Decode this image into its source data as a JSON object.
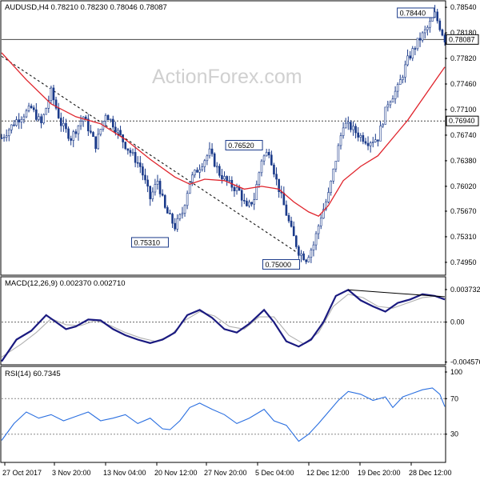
{
  "chart_data": [
    {
      "type": "candlestick",
      "title": "AUDUSD,H4  0.78210 0.78230 0.78046 0.78087",
      "watermark": "ActionForex.com",
      "ylim": [
        0.7478,
        0.7862
      ],
      "y_ticks": [
        "0.78540",
        "0.78180",
        "0.77820",
        "0.77460",
        "0.77100",
        "0.76740",
        "0.76380",
        "0.76020",
        "0.75670",
        "0.75310",
        "0.74950"
      ],
      "x_ticks": [
        "27 Oct 2017",
        "3 Nov 20:00",
        "13 Nov 04:00",
        "20 Nov 12:00",
        "27 Nov 20:00",
        "5 Dec 04:00",
        "12 Dec 12:00",
        "19 Dec 20:00",
        "28 Dec 12:00"
      ],
      "price_path": [
        [
          0,
          0.767
        ],
        [
          6,
          0.7695
        ],
        [
          12,
          0.7712
        ],
        [
          16,
          0.769
        ],
        [
          20,
          0.7735
        ],
        [
          24,
          0.769
        ],
        [
          28,
          0.767
        ],
        [
          33,
          0.77
        ],
        [
          38,
          0.766
        ],
        [
          42,
          0.7705
        ],
        [
          45,
          0.769
        ],
        [
          50,
          0.766
        ],
        [
          56,
          0.763
        ],
        [
          60,
          0.7585
        ],
        [
          63,
          0.761
        ],
        [
          66,
          0.757
        ],
        [
          70,
          0.7545
        ],
        [
          73,
          0.7565
        ],
        [
          76,
          0.761
        ],
        [
          80,
          0.763
        ],
        [
          84,
          0.765
        ],
        [
          88,
          0.762
        ],
        [
          92,
          0.7605
        ],
        [
          96,
          0.7595
        ],
        [
          99,
          0.757
        ],
        [
          102,
          0.7585
        ],
        [
          105,
          0.764
        ],
        [
          108,
          0.7652
        ],
        [
          111,
          0.761
        ],
        [
          114,
          0.7575
        ],
        [
          117,
          0.754
        ],
        [
          120,
          0.751
        ],
        [
          123,
          0.75
        ],
        [
          126,
          0.752
        ],
        [
          129,
          0.756
        ],
        [
          132,
          0.759
        ],
        [
          135,
          0.764
        ],
        [
          138,
          0.769
        ],
        [
          141,
          0.7685
        ],
        [
          144,
          0.7675
        ],
        [
          148,
          0.7665
        ],
        [
          152,
          0.767
        ],
        [
          156,
          0.772
        ],
        [
          160,
          0.774
        ],
        [
          164,
          0.778
        ],
        [
          168,
          0.7805
        ],
        [
          172,
          0.7825
        ],
        [
          175,
          0.7844
        ],
        [
          179,
          0.7809
        ]
      ],
      "ma_path": [
        [
          0,
          0.779
        ],
        [
          10,
          0.7752
        ],
        [
          20,
          0.7718
        ],
        [
          30,
          0.77
        ],
        [
          40,
          0.769
        ],
        [
          50,
          0.7668
        ],
        [
          60,
          0.764
        ],
        [
          70,
          0.7615
        ],
        [
          76,
          0.7605
        ],
        [
          82,
          0.7612
        ],
        [
          90,
          0.761
        ],
        [
          98,
          0.7598
        ],
        [
          105,
          0.7602
        ],
        [
          112,
          0.7598
        ],
        [
          118,
          0.758
        ],
        [
          124,
          0.7566
        ],
        [
          128,
          0.756
        ],
        [
          132,
          0.7575
        ],
        [
          138,
          0.761
        ],
        [
          145,
          0.763
        ],
        [
          152,
          0.7645
        ],
        [
          158,
          0.767
        ],
        [
          164,
          0.7695
        ],
        [
          170,
          0.7725
        ],
        [
          176,
          0.7755
        ],
        [
          179,
          0.777
        ]
      ],
      "trendline": [
        [
          0,
          0.7785
        ],
        [
          121,
          0.7505
        ]
      ],
      "horizontal_lines": [
        {
          "label": "0.78087",
          "value": 0.78087
        },
        {
          "label": "0.76940",
          "value": 0.7694
        }
      ],
      "annotations": [
        {
          "label": "0.78440",
          "x": 175,
          "y": 0.7844,
          "pos": "left-above"
        },
        {
          "label": "0.76520",
          "x": 106,
          "y": 0.7652,
          "pos": "left-above"
        },
        {
          "label": "0.75310",
          "x": 68,
          "y": 0.7531,
          "pos": "left-below"
        },
        {
          "label": "0.75000",
          "x": 121,
          "y": 0.75,
          "pos": "left-below"
        }
      ],
      "colors": {
        "candle": "#1a3a8a",
        "ma": "#e0242c",
        "trend": "#000000",
        "hline": "#444444"
      }
    },
    {
      "type": "line",
      "title": "MACD(12,26,9) 0.002370 0.002710",
      "ylim": [
        -0.0048,
        0.004
      ],
      "y_ticks": [
        "0.003732",
        "0.00",
        "-0.004576"
      ],
      "macd_path": [
        [
          0,
          -0.0045
        ],
        [
          6,
          -0.002
        ],
        [
          12,
          -0.001
        ],
        [
          18,
          0.0008
        ],
        [
          22,
          0.0
        ],
        [
          26,
          -0.0008
        ],
        [
          30,
          -0.0005
        ],
        [
          35,
          0.0003
        ],
        [
          40,
          0.0002
        ],
        [
          45,
          -0.0008
        ],
        [
          50,
          -0.0015
        ],
        [
          55,
          -0.002
        ],
        [
          60,
          -0.0024
        ],
        [
          65,
          -0.002
        ],
        [
          70,
          -0.0012
        ],
        [
          75,
          0.0008
        ],
        [
          80,
          0.0014
        ],
        [
          85,
          0.0005
        ],
        [
          90,
          -0.0008
        ],
        [
          95,
          -0.0012
        ],
        [
          100,
          -0.0002
        ],
        [
          106,
          0.0014
        ],
        [
          110,
          0.0
        ],
        [
          115,
          -0.0022
        ],
        [
          120,
          -0.0028
        ],
        [
          125,
          -0.002
        ],
        [
          130,
          0.0
        ],
        [
          135,
          0.003
        ],
        [
          140,
          0.0037
        ],
        [
          145,
          0.0025
        ],
        [
          150,
          0.0018
        ],
        [
          155,
          0.0012
        ],
        [
          160,
          0.0022
        ],
        [
          165,
          0.0026
        ],
        [
          170,
          0.0032
        ],
        [
          175,
          0.003
        ],
        [
          179,
          0.0026
        ]
      ],
      "signal_path": [
        [
          0,
          -0.004
        ],
        [
          8,
          -0.0025
        ],
        [
          14,
          -0.0012
        ],
        [
          20,
          0.0004
        ],
        [
          26,
          -0.0003
        ],
        [
          32,
          -0.0004
        ],
        [
          38,
          0.0002
        ],
        [
          44,
          -0.0004
        ],
        [
          50,
          -0.0012
        ],
        [
          56,
          -0.0018
        ],
        [
          62,
          -0.0022
        ],
        [
          68,
          -0.0016
        ],
        [
          74,
          0.0002
        ],
        [
          80,
          0.0012
        ],
        [
          86,
          0.0007
        ],
        [
          92,
          -0.0005
        ],
        [
          98,
          -0.0008
        ],
        [
          104,
          0.0006
        ],
        [
          110,
          0.0006
        ],
        [
          116,
          -0.0015
        ],
        [
          122,
          -0.0025
        ],
        [
          128,
          -0.0012
        ],
        [
          134,
          0.0018
        ],
        [
          140,
          0.0032
        ],
        [
          146,
          0.0028
        ],
        [
          152,
          0.0018
        ],
        [
          158,
          0.0016
        ],
        [
          164,
          0.0022
        ],
        [
          170,
          0.0028
        ],
        [
          176,
          0.003
        ],
        [
          179,
          0.0029
        ]
      ],
      "ref_line": [
        [
          0,
          0.0037
        ],
        [
          179,
          0.0029
        ]
      ],
      "colors": {
        "macd": "#1a1a80",
        "signal": "#b0b0b0",
        "ref": "#000000"
      }
    },
    {
      "type": "line",
      "title": "RSI(14) 60.7345",
      "ylim": [
        0,
        100
      ],
      "y_ticks": [
        "100",
        "70",
        "30"
      ],
      "rsi_path": [
        [
          0,
          23
        ],
        [
          5,
          42
        ],
        [
          10,
          55
        ],
        [
          15,
          48
        ],
        [
          20,
          52
        ],
        [
          25,
          45
        ],
        [
          30,
          50
        ],
        [
          35,
          55
        ],
        [
          40,
          45
        ],
        [
          45,
          48
        ],
        [
          50,
          52
        ],
        [
          55,
          42
        ],
        [
          60,
          48
        ],
        [
          65,
          36
        ],
        [
          68,
          35
        ],
        [
          72,
          45
        ],
        [
          76,
          60
        ],
        [
          80,
          65
        ],
        [
          85,
          58
        ],
        [
          90,
          52
        ],
        [
          95,
          42
        ],
        [
          100,
          48
        ],
        [
          106,
          58
        ],
        [
          110,
          45
        ],
        [
          115,
          40
        ],
        [
          120,
          22
        ],
        [
          124,
          30
        ],
        [
          128,
          42
        ],
        [
          132,
          55
        ],
        [
          136,
          68
        ],
        [
          140,
          78
        ],
        [
          145,
          75
        ],
        [
          150,
          68
        ],
        [
          155,
          72
        ],
        [
          158,
          60
        ],
        [
          162,
          72
        ],
        [
          166,
          76
        ],
        [
          170,
          80
        ],
        [
          174,
          82
        ],
        [
          177,
          75
        ],
        [
          179,
          61
        ]
      ],
      "colors": {
        "rsi": "#2a6fe0",
        "level": "#888888"
      }
    }
  ]
}
